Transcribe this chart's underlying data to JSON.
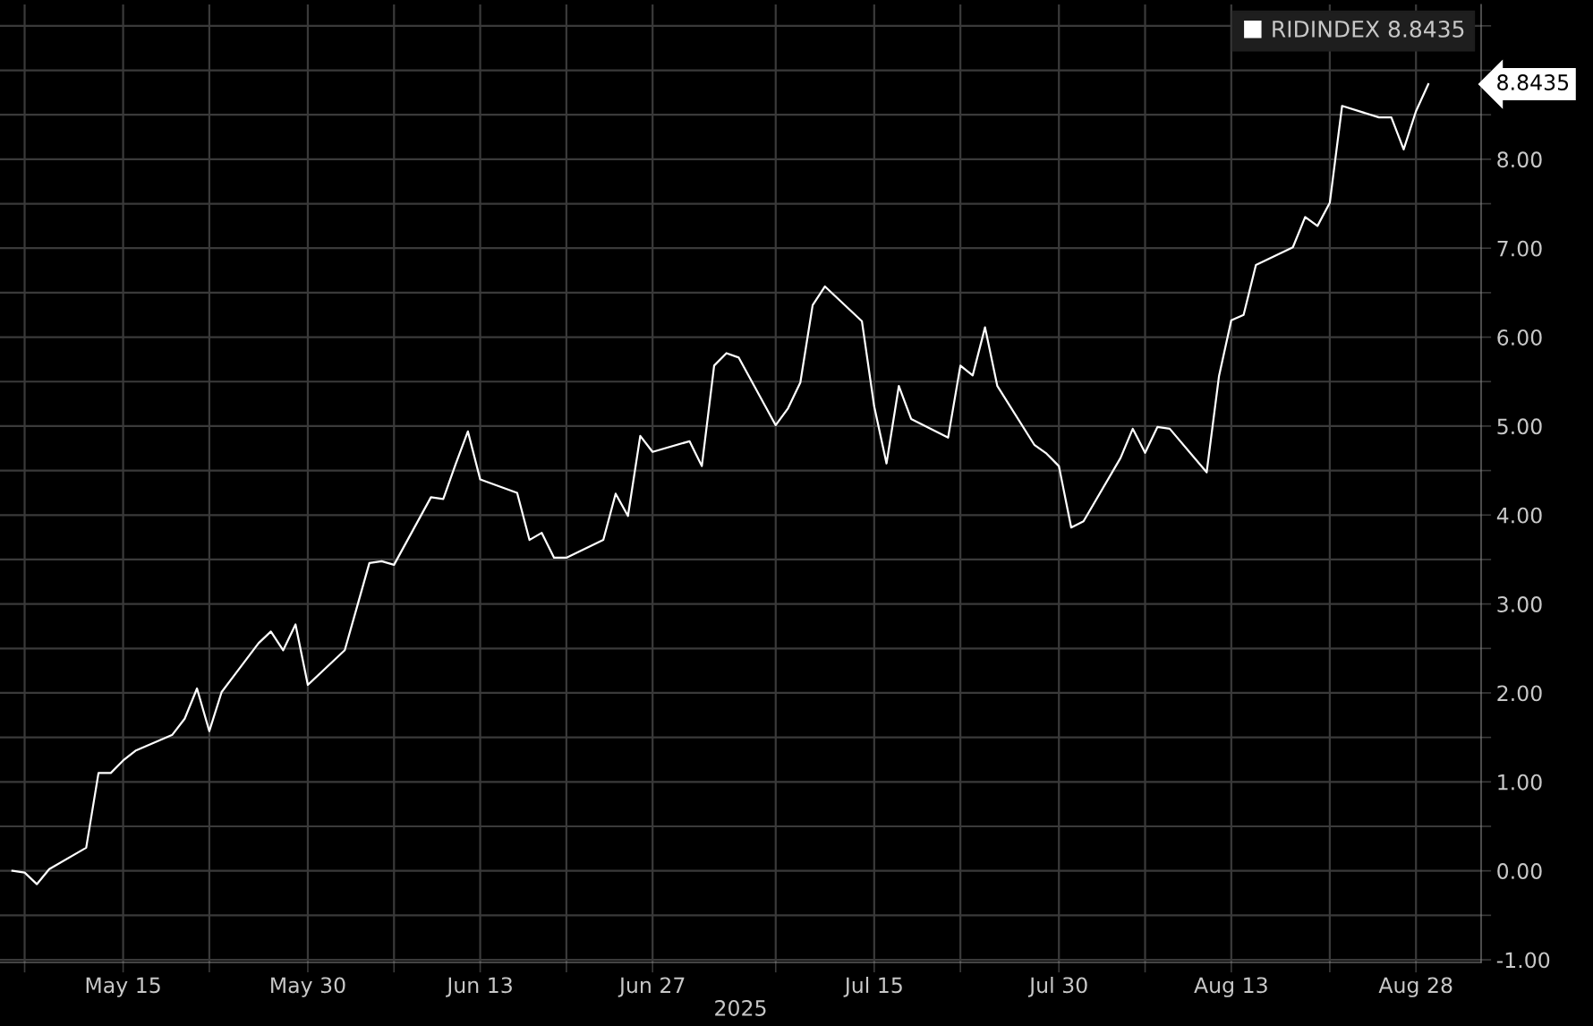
{
  "chart_data": {
    "type": "line",
    "xlabel": "2025",
    "x": [
      "2025-05-06",
      "2025-05-07",
      "2025-05-08",
      "2025-05-09",
      "2025-05-12",
      "2025-05-13",
      "2025-05-14",
      "2025-05-15",
      "2025-05-16",
      "2025-05-19",
      "2025-05-20",
      "2025-05-21",
      "2025-05-22",
      "2025-05-23",
      "2025-05-26",
      "2025-05-27",
      "2025-05-28",
      "2025-05-29",
      "2025-05-30",
      "2025-06-02",
      "2025-06-03",
      "2025-06-04",
      "2025-06-05",
      "2025-06-06",
      "2025-06-09",
      "2025-06-10",
      "2025-06-11",
      "2025-06-12",
      "2025-06-13",
      "2025-06-16",
      "2025-06-17",
      "2025-06-18",
      "2025-06-19",
      "2025-06-20",
      "2025-06-23",
      "2025-06-24",
      "2025-06-25",
      "2025-06-26",
      "2025-06-27",
      "2025-06-30",
      "2025-07-01",
      "2025-07-02",
      "2025-07-03",
      "2025-07-04",
      "2025-07-07",
      "2025-07-08",
      "2025-07-09",
      "2025-07-10",
      "2025-07-11",
      "2025-07-14",
      "2025-07-15",
      "2025-07-16",
      "2025-07-17",
      "2025-07-18",
      "2025-07-21",
      "2025-07-22",
      "2025-07-23",
      "2025-07-24",
      "2025-07-25",
      "2025-07-28",
      "2025-07-29",
      "2025-07-30",
      "2025-07-31",
      "2025-08-01",
      "2025-08-04",
      "2025-08-05",
      "2025-08-06",
      "2025-08-07",
      "2025-08-08",
      "2025-08-11",
      "2025-08-12",
      "2025-08-13",
      "2025-08-14",
      "2025-08-15",
      "2025-08-18",
      "2025-08-19",
      "2025-08-20",
      "2025-08-21",
      "2025-08-22",
      "2025-08-25",
      "2025-08-26",
      "2025-08-27",
      "2025-08-28",
      "2025-08-29"
    ],
    "series": [
      {
        "name": "RIDINDEX 8.8435",
        "color": "#ffffff",
        "values": [
          0.0,
          -0.02,
          -0.15,
          0.02,
          0.26,
          1.1,
          1.1,
          1.24,
          1.35,
          1.53,
          1.71,
          2.05,
          1.57,
          2.01,
          2.56,
          2.69,
          2.48,
          2.77,
          2.09,
          2.48,
          2.97,
          3.46,
          3.48,
          3.44,
          4.2,
          4.18,
          4.57,
          4.94,
          4.4,
          4.25,
          3.72,
          3.8,
          3.52,
          3.52,
          3.72,
          4.24,
          3.99,
          4.89,
          4.71,
          4.83,
          4.55,
          5.68,
          5.82,
          5.77,
          5.01,
          5.2,
          5.49,
          6.36,
          6.57,
          6.18,
          5.22,
          4.58,
          5.45,
          5.08,
          4.87,
          5.68,
          5.57,
          6.11,
          5.45,
          4.79,
          4.69,
          4.55,
          3.86,
          3.93,
          4.64,
          4.97,
          4.7,
          4.99,
          4.97,
          4.48,
          5.56,
          6.19,
          6.25,
          6.81,
          7.01,
          7.35,
          7.25,
          7.51,
          8.6,
          8.47,
          8.47,
          8.11,
          8.54,
          8.8435
        ]
      }
    ],
    "annotations": [
      "8.8435"
    ],
    "xlim": [
      "2025-05-05T00:00",
      "2025-09-02T07:00"
    ],
    "xticks": [
      {
        "value": "2025-05-07",
        "label": null
      },
      {
        "value": "2025-05-15",
        "label": "May 15"
      },
      {
        "value": "2025-05-22",
        "label": null
      },
      {
        "value": "2025-05-30",
        "label": "May 30"
      },
      {
        "value": "2025-06-06",
        "label": null
      },
      {
        "value": "2025-06-13",
        "label": "Jun 13"
      },
      {
        "value": "2025-06-20",
        "label": null
      },
      {
        "value": "2025-06-27",
        "label": "Jun 27"
      },
      {
        "value": "2025-07-07",
        "label": null
      },
      {
        "value": "2025-07-15",
        "label": "Jul 15"
      },
      {
        "value": "2025-07-22",
        "label": null
      },
      {
        "value": "2025-07-30",
        "label": "Jul 30"
      },
      {
        "value": "2025-08-06",
        "label": null
      },
      {
        "value": "2025-08-13",
        "label": "Aug 13"
      },
      {
        "value": "2025-08-21",
        "label": null
      },
      {
        "value": "2025-08-28",
        "label": "Aug 28"
      }
    ],
    "ylim": [
      -1.03,
      9.74
    ],
    "yticks": [
      {
        "value": -1,
        "label": "-1.00"
      },
      {
        "value": -0.5,
        "label": null
      },
      {
        "value": 0,
        "label": "0.00"
      },
      {
        "value": 0.5,
        "label": null
      },
      {
        "value": 1,
        "label": "1.00"
      },
      {
        "value": 1.5,
        "label": null
      },
      {
        "value": 2,
        "label": "2.00"
      },
      {
        "value": 2.5,
        "label": null
      },
      {
        "value": 3,
        "label": "3.00"
      },
      {
        "value": 3.5,
        "label": null
      },
      {
        "value": 4,
        "label": "4.00"
      },
      {
        "value": 4.5,
        "label": null
      },
      {
        "value": 5,
        "label": "5.00"
      },
      {
        "value": 5.5,
        "label": null
      },
      {
        "value": 6,
        "label": "6.00"
      },
      {
        "value": 6.5,
        "label": null
      },
      {
        "value": 7,
        "label": "7.00"
      },
      {
        "value": 7.5,
        "label": null
      },
      {
        "value": 8,
        "label": "8.00"
      },
      {
        "value": 8.5,
        "label": null
      },
      {
        "value": 9,
        "label": null
      },
      {
        "value": 9.5,
        "label": null
      }
    ],
    "grid": true,
    "legend": "top right",
    "line_style": "solid",
    "marker": "none"
  }
}
